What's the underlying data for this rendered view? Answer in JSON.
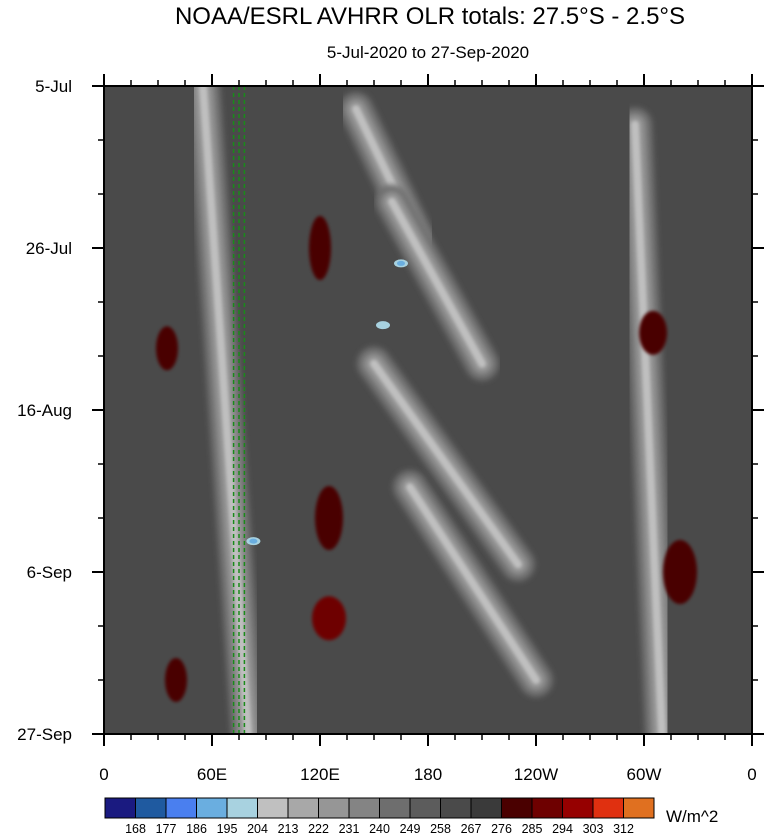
{
  "chart_data": {
    "type": "heatmap",
    "title": "NOAA/ESRL AVHRR OLR totals: 27.5°S - 2.5°S",
    "subtitle": "5-Jul-2020 to 27-Sep-2020",
    "xlabel": "",
    "ylabel": "",
    "x_ticks": [
      "0",
      "60E",
      "120E",
      "180",
      "120W",
      "60W",
      "0"
    ],
    "x_range_deg": [
      0,
      360
    ],
    "y_ticks": [
      "5-Jul",
      "26-Jul",
      "16-Aug",
      "6-Sep",
      "27-Sep"
    ],
    "y_range": [
      "5-Jul-2020",
      "27-Sep-2020"
    ],
    "y_direction": "time increases downward",
    "colorbar": {
      "units": "W/m^2",
      "levels": [
        "168",
        "177",
        "186",
        "195",
        "204",
        "213",
        "222",
        "231",
        "240",
        "249",
        "258",
        "267",
        "276",
        "285",
        "294",
        "303",
        "312"
      ],
      "colors": [
        "#1a1a80",
        "#1f5aa0",
        "#4a7fef",
        "#6aaee0",
        "#a8d2e0",
        "#c0c0c0",
        "#a8a8a8",
        "#969696",
        "#848484",
        "#6e6e6e",
        "#5c5c5c",
        "#4a4a4a",
        "#3a3a3a",
        "#4a0000",
        "#6e0000",
        "#960000",
        "#e03010",
        "#e07020"
      ]
    },
    "reference_lines_lon": [
      72,
      75,
      78
    ],
    "reference_line_color": "#1a8a1a",
    "convective_bands": [
      {
        "lon_start": 55,
        "date_start": "5-Jul",
        "lon_end": 80,
        "date_end": "27-Sep"
      },
      {
        "lon_start": 140,
        "date_start": "8-Jul",
        "lon_end": 175,
        "date_end": "25-Jul"
      },
      {
        "lon_start": 160,
        "date_start": "20-Jul",
        "lon_end": 210,
        "date_end": "10-Aug"
      },
      {
        "lon_start": 150,
        "date_start": "10-Aug",
        "lon_end": 230,
        "date_end": "5-Sep"
      },
      {
        "lon_start": 170,
        "date_start": "26-Aug",
        "lon_end": 240,
        "date_end": "20-Sep"
      },
      {
        "lon_start": 295,
        "date_start": "10-Jul",
        "lon_end": 310,
        "date_end": "27-Sep"
      }
    ],
    "minimum_spots": [
      {
        "lon": 165,
        "date": "28-Jul",
        "class": "186-195"
      },
      {
        "lon": 155,
        "date": "5-Aug",
        "class": "195-204"
      },
      {
        "lon": 83,
        "date": "2-Sep",
        "class": "186-195"
      }
    ],
    "high_olr_patches": [
      {
        "lon": 40,
        "date": "20-Sep",
        "class": "276-285"
      },
      {
        "lon": 125,
        "date": "30-Aug",
        "class": "276-285"
      },
      {
        "lon": 125,
        "date": "12-Sep",
        "class": "285-294"
      },
      {
        "lon": 120,
        "date": "26-Jul",
        "class": "276-285"
      },
      {
        "lon": 305,
        "date": "6-Aug",
        "class": "276-285"
      },
      {
        "lon": 320,
        "date": "6-Sep",
        "class": "276-285"
      },
      {
        "lon": 35,
        "date": "8-Aug",
        "class": "276-285"
      }
    ]
  }
}
